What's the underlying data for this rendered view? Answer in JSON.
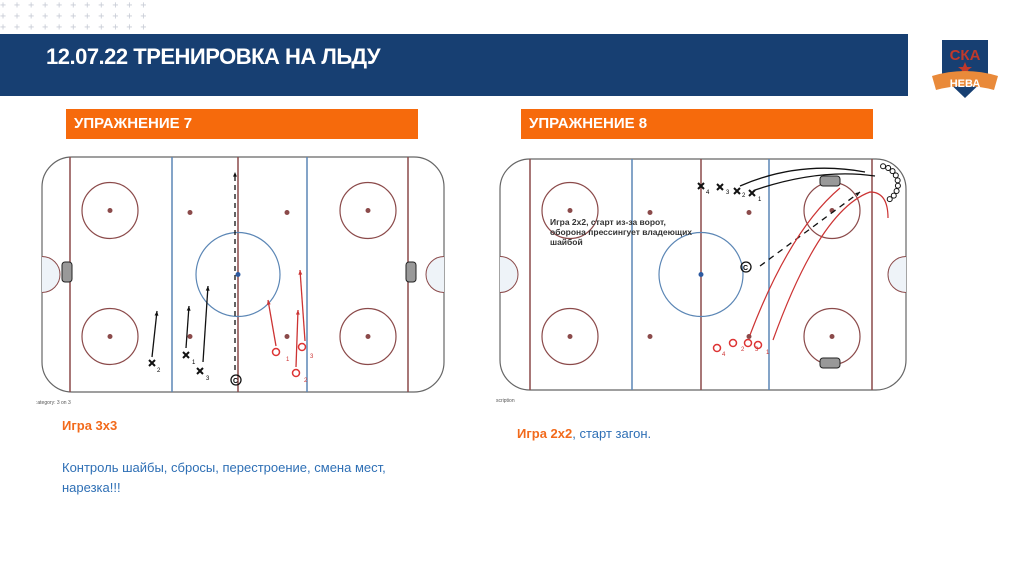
{
  "header": {
    "title": "12.07.22 ТРЕНИРОВКА  НА ЛЬДУ",
    "logo_text_top": "СКА",
    "logo_text_bottom": "НЕВА",
    "banner_color": "#173f72"
  },
  "exercises": [
    {
      "heading": "УПРАЖНЕНИЕ 7",
      "caption": ":ategory: 3 on 3",
      "title": "Игра 3x3",
      "description": "Контроль шайбы, сбросы, перестроение, смена мест, нарезка!!!",
      "x_labels": [
        "2",
        "1",
        "3"
      ],
      "o_labels": [
        "1",
        "2",
        "3"
      ]
    },
    {
      "heading": "УПРАЖНЕНИЕ 8",
      "caption": "scription",
      "title": "Игра 2x2",
      "title_suffix": ", старт загон.",
      "diagram_note": "Игра 2x2, старт из-за ворот, оборона прессингует владеющих шайбой",
      "x_labels": [
        "4",
        "3",
        "2",
        "1"
      ],
      "o_labels": [
        "4",
        "2",
        "3",
        "1"
      ]
    }
  ],
  "colors": {
    "accent": "#f66a0c",
    "red_line": "#8b4a4a",
    "blue_line": "#5b86b5",
    "text_blue": "#2e6fb5"
  }
}
